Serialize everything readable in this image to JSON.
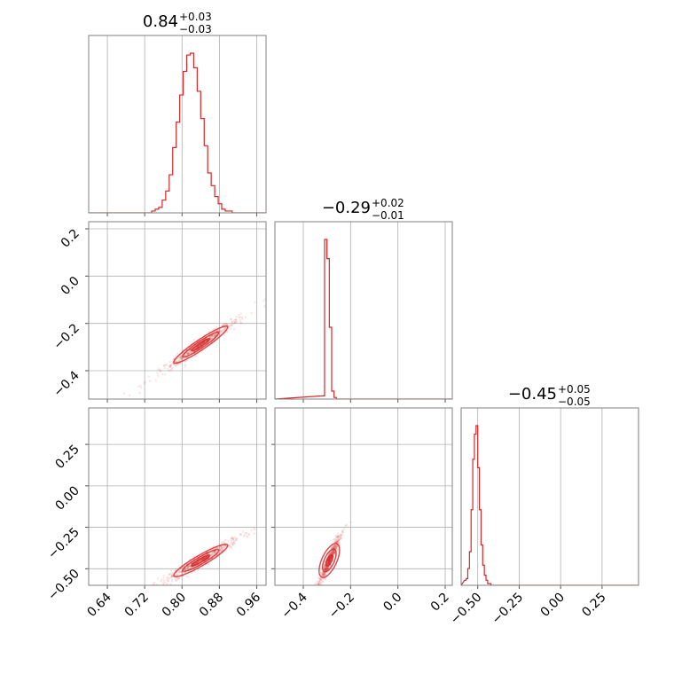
{
  "colors": {
    "series": "#d62728",
    "grid": "#b0b0b0",
    "frame": "#808080"
  },
  "chart_data": {
    "type": "corner",
    "parameters": [
      {
        "name": "",
        "title_value": "0.84",
        "title_plus": "+0.03",
        "title_minus": "−0.03",
        "range": [
          0.6,
          0.98
        ],
        "ticks": [
          0.64,
          0.72,
          0.8,
          0.88,
          0.96
        ],
        "tick_labels": [
          "0.64",
          "0.72",
          "0.80",
          "0.88",
          "0.96"
        ]
      },
      {
        "name": "",
        "title_value": "−0.29",
        "title_plus": "+0.02",
        "title_minus": "−0.01",
        "range": [
          -0.52,
          0.23
        ],
        "ticks": [
          -0.4,
          -0.2,
          0.0,
          0.2
        ],
        "tick_labels": [
          "−0.4",
          "−0.2",
          "0.0",
          "0.2"
        ]
      },
      {
        "name": "",
        "title_value": "−0.45",
        "title_plus": "+0.05",
        "title_minus": "−0.05",
        "range": [
          -0.6,
          0.47
        ],
        "ticks": [
          -0.5,
          -0.25,
          0.0,
          0.25
        ],
        "tick_labels": [
          "−0.50",
          "−0.25",
          "0.00",
          "0.25"
        ]
      }
    ],
    "histograms": [
      {
        "edges": [
          0.6,
          0.9775
        ],
        "bin_width": 0.0075,
        "counts": [
          0,
          0,
          0,
          0,
          0,
          0,
          0,
          0,
          0,
          0,
          0,
          0,
          0,
          0,
          0,
          0,
          0,
          0,
          1,
          2,
          3,
          7,
          12,
          21,
          36,
          50,
          65,
          78,
          87,
          88,
          80,
          67,
          52,
          37,
          22,
          15,
          9,
          5,
          2,
          1,
          1,
          0,
          0,
          0,
          0,
          0,
          0,
          0,
          0,
          0,
          0
        ]
      },
      {
        "start": -0.32,
        "bin_width": 0.01,
        "counts": [
          2,
          100,
          88,
          45,
          5,
          1,
          0
        ]
      },
      {
        "start": -0.58,
        "bin_width": 0.01,
        "counts": [
          3,
          4,
          10,
          20,
          45,
          75,
          90,
          95,
          70,
          45,
          24,
          12,
          6,
          3,
          1,
          1,
          0
        ]
      }
    ],
    "scatter": {
      "pair_0_1": {
        "slope": 1.33,
        "x_center": 0.84,
        "y_center": -0.29,
        "x_sd": 0.032,
        "noise": 0.012
      },
      "pair_0_2": {
        "slope": 1.63,
        "x_center": 0.84,
        "y_center": -0.45,
        "x_sd": 0.032,
        "noise": 0.018
      },
      "pair_1_2": {
        "slope": 3.1,
        "x_center": -0.29,
        "y_center": -0.45,
        "x_sd": 0.018,
        "noise": 0.025
      }
    },
    "grid": true
  }
}
